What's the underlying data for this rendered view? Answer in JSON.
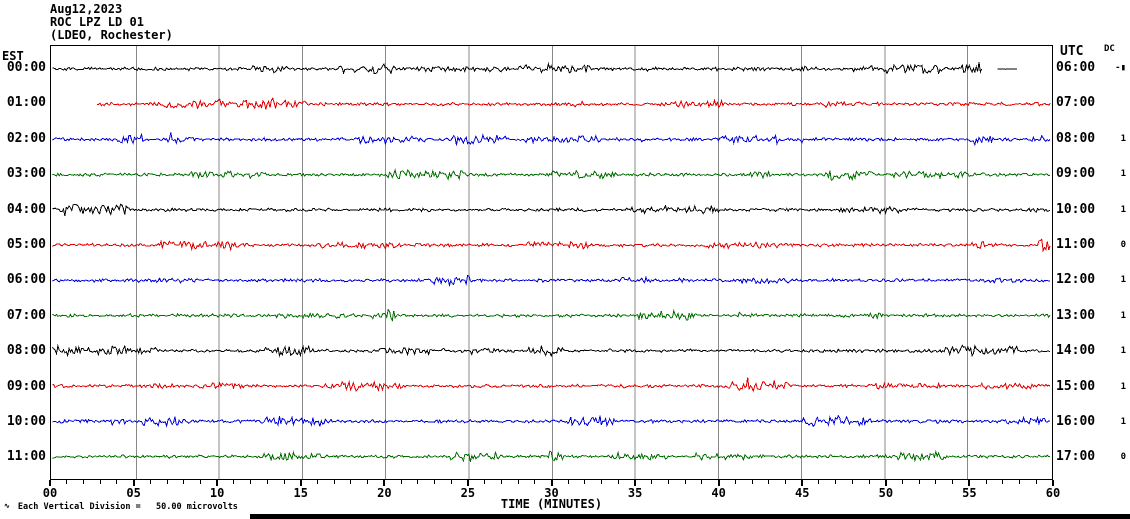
{
  "header": {
    "date": "Aug12,2023",
    "station": "ROC LPZ LD 01",
    "location": "(LDEO, Rochester)"
  },
  "axes": {
    "left_label": "EST",
    "right_label": "UTC",
    "dc_label": "DC",
    "xlabel": "TIME (MINUTES)"
  },
  "footer": {
    "glyph": "∿",
    "note": "Each Vertical Division =   50.00 microvolts"
  },
  "chart_data": {
    "type": "line",
    "subtype": "helicorder-seismogram",
    "title": "ROC LPZ LD 01 (LDEO, Rochester) Aug12,2023",
    "xlabel": "TIME (MINUTES)",
    "x_range": [
      0,
      60
    ],
    "x_major_tick_labels": [
      "00",
      "05",
      "10",
      "15",
      "20",
      "25",
      "30",
      "35",
      "40",
      "45",
      "50",
      "55",
      "60"
    ],
    "x_minor_tick_minutes": 1,
    "grid": true,
    "grid_color": "#888888",
    "vertical_division_microvolts": 50.0,
    "description": "Twelve hourly trace rows of flat background seismic noise with occasional small bursts; colors cycle black/red/blue/green. Row 00:00 EST recording stops near minute 56 with a brief quiet segment near minutes 57-58; row 01:00 EST starts near minute 2.7.",
    "rows": [
      {
        "est": "00:00",
        "utc": "06:00",
        "dc": "-▮",
        "color": "#000000",
        "segments": [
          [
            0,
            55.9,
            1
          ],
          [
            56.8,
            58.0,
            0.3
          ]
        ]
      },
      {
        "est": "01:00",
        "utc": "07:00",
        "dc": "",
        "color": "#e00000",
        "segments": [
          [
            2.7,
            60,
            1
          ]
        ]
      },
      {
        "est": "02:00",
        "utc": "08:00",
        "dc": "1",
        "color": "#0000d8",
        "segments": [
          [
            0,
            60,
            1
          ]
        ]
      },
      {
        "est": "03:00",
        "utc": "09:00",
        "dc": "1",
        "color": "#007000",
        "segments": [
          [
            0,
            60,
            1
          ]
        ]
      },
      {
        "est": "04:00",
        "utc": "10:00",
        "dc": "1",
        "color": "#000000",
        "segments": [
          [
            0,
            60,
            1
          ]
        ]
      },
      {
        "est": "05:00",
        "utc": "11:00",
        "dc": "0",
        "color": "#e00000",
        "segments": [
          [
            0,
            60,
            1
          ]
        ]
      },
      {
        "est": "06:00",
        "utc": "12:00",
        "dc": "1",
        "color": "#0000d8",
        "segments": [
          [
            0,
            60,
            1
          ]
        ]
      },
      {
        "est": "07:00",
        "utc": "13:00",
        "dc": "1",
        "color": "#007000",
        "segments": [
          [
            0,
            60,
            1
          ]
        ]
      },
      {
        "est": "08:00",
        "utc": "14:00",
        "dc": "1",
        "color": "#000000",
        "segments": [
          [
            0,
            60,
            1
          ]
        ]
      },
      {
        "est": "09:00",
        "utc": "15:00",
        "dc": "1",
        "color": "#e00000",
        "segments": [
          [
            0,
            60,
            1
          ]
        ]
      },
      {
        "est": "10:00",
        "utc": "16:00",
        "dc": "1",
        "color": "#0000d8",
        "segments": [
          [
            0,
            60,
            1
          ]
        ]
      },
      {
        "est": "11:00",
        "utc": "17:00",
        "dc": "0",
        "color": "#007000",
        "segments": [
          [
            0,
            60,
            1
          ]
        ]
      }
    ]
  }
}
